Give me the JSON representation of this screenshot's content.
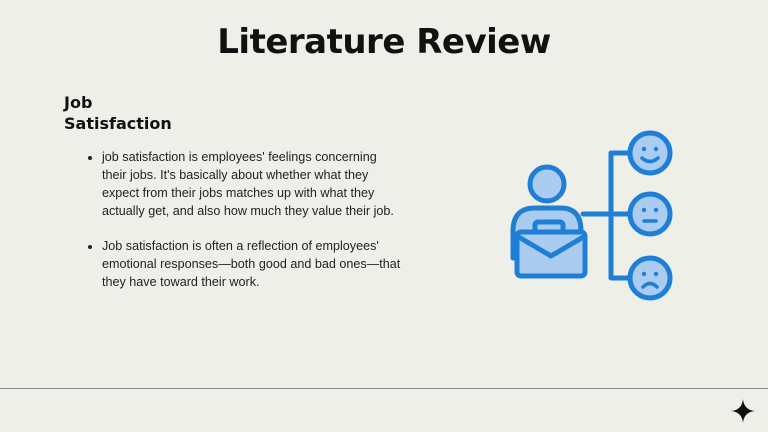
{
  "slide": {
    "title": "Literature Review",
    "section_heading_line1": "Job",
    "section_heading_line2": "Satisfaction",
    "bullets": [
      "job satisfaction is employees' feelings concerning their jobs. It's basically about whether what they expect from their jobs matches up with what they actually get, and also how much they value their job.",
      " Job satisfaction is often a reflection of employees' emotional responses—both good and bad ones—that they have toward their work."
    ]
  },
  "illustration": {
    "icon": "employee-satisfaction-icon",
    "faces": [
      "happy-face-icon",
      "neutral-face-icon",
      "sad-face-icon"
    ],
    "colors": {
      "fill": "#a9ccf0",
      "stroke": "#1f7fd6"
    }
  },
  "decor": {
    "icon": "sparkle-icon",
    "divider_color": "#8a8a8a"
  }
}
